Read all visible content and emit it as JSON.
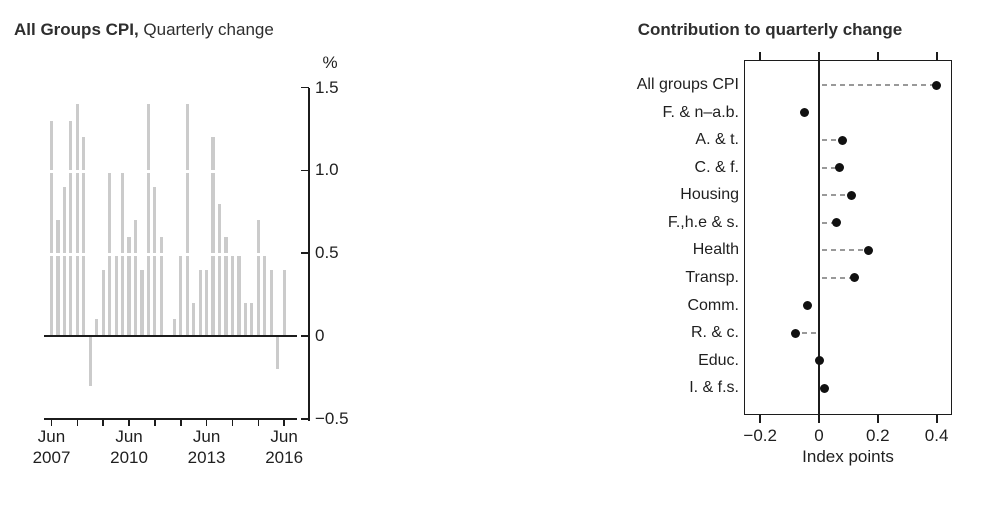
{
  "figure": {
    "background": "#ffffff",
    "colors": {
      "bar": "#cbcbcb",
      "axis": "#1c1c1c",
      "dot": "#111111",
      "dash": "#999999",
      "title": "#2e2e2e",
      "label": "#1f1f1f"
    }
  },
  "chart_data": [
    {
      "type": "bar",
      "title_bold": "All Groups CPI,",
      "title_regular": " Quarterly change",
      "unit_label": "%",
      "ylabel": "%",
      "ylim": [
        -0.5,
        1.5
      ],
      "grid": "white gridlines over bars at 0.5 and 1.0",
      "y_ticks": [
        1.5,
        1.0,
        0.5,
        0,
        -0.5
      ],
      "y_tick_labels": [
        "1.5",
        "1.0",
        "0.5",
        "0",
        "−0.5"
      ],
      "categories": [
        "Jun 2007",
        "Sep 2007",
        "Dec 2007",
        "Mar 2008",
        "Jun 2008",
        "Sep 2008",
        "Dec 2008",
        "Mar 2009",
        "Jun 2009",
        "Sep 2009",
        "Dec 2009",
        "Mar 2010",
        "Jun 2010",
        "Sep 2010",
        "Dec 2010",
        "Mar 2011",
        "Jun 2011",
        "Sep 2011",
        "Dec 2011",
        "Mar 2012",
        "Jun 2012",
        "Sep 2012",
        "Dec 2012",
        "Mar 2013",
        "Jun 2013",
        "Sep 2013",
        "Dec 2013",
        "Mar 2014",
        "Jun 2014",
        "Sep 2014",
        "Dec 2014",
        "Mar 2015",
        "Jun 2015",
        "Sep 2015",
        "Dec 2015",
        "Mar 2016",
        "Jun 2016"
      ],
      "values": [
        1.3,
        0.7,
        0.9,
        1.3,
        1.4,
        1.2,
        -0.3,
        0.1,
        0.4,
        1.0,
        0.5,
        1.0,
        0.6,
        0.7,
        0.4,
        1.4,
        0.9,
        0.6,
        0.0,
        0.1,
        0.5,
        1.4,
        0.2,
        0.4,
        0.4,
        1.2,
        0.8,
        0.6,
        0.5,
        0.5,
        0.2,
        0.2,
        0.7,
        0.5,
        0.4,
        -0.2,
        0.4
      ],
      "annual_tick_quarter_indices": [
        0,
        4,
        8,
        12,
        16,
        20,
        24,
        28,
        32,
        36
      ],
      "x_labeled_ticks": [
        {
          "tick_index": 0,
          "month": "Jun",
          "year": "2007"
        },
        {
          "tick_index": 3,
          "month": "Jun",
          "year": "2010"
        },
        {
          "tick_index": 6,
          "month": "Jun",
          "year": "2013"
        },
        {
          "tick_index": 9,
          "month": "Jun",
          "year": "2016"
        }
      ]
    },
    {
      "type": "scatter",
      "title": "Contribution to quarterly change",
      "xlabel": "Index points",
      "xlim": [
        -0.26,
        0.45
      ],
      "x_ticks": [
        -0.2,
        0,
        0.2,
        0.4
      ],
      "x_tick_labels": [
        "−0.2",
        "0",
        "0.2",
        "0.4"
      ],
      "marker": "filled black circle with grey dashed connector from zero line",
      "categories": [
        "All groups CPI",
        "F. & n–a.b.",
        "A. & t.",
        "C. & f.",
        "Housing",
        "F.,h.e & s.",
        "Health",
        "Transp.",
        "Comm.",
        "R. & c.",
        "Educ.",
        "I. & f.s."
      ],
      "values": [
        0.4,
        -0.05,
        0.08,
        0.07,
        0.11,
        0.06,
        0.17,
        0.12,
        -0.04,
        -0.08,
        0.0,
        0.02
      ]
    }
  ]
}
